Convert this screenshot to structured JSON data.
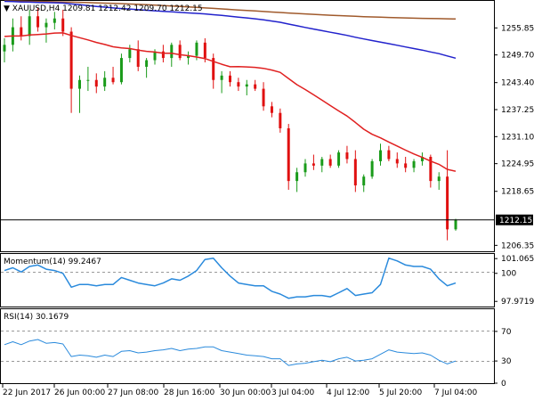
{
  "header": {
    "symbol_label": "XAUUSD,H4",
    "ohlc_text": "1209.81 1212.42 1209.70 1212.15"
  },
  "panels": {
    "price": {
      "ticks": [
        "1255.85",
        "1249.70",
        "1243.40",
        "1237.25",
        "1231.10",
        "1224.95",
        "1218.65",
        "1206.35"
      ],
      "current_price_label": "1212.15"
    },
    "momentum": {
      "label": "Momentum(14) 99.2467",
      "ticks": [
        "101.0655",
        "100",
        "97.9719"
      ]
    },
    "rsi": {
      "label": "RSI(14) 30.1679",
      "ticks": [
        "70",
        "30",
        "0"
      ]
    }
  },
  "x_axis": {
    "labels": [
      "22 Jun 2017",
      "26 Jun 00:00",
      "27 Jun 08:00",
      "28 Jun 16:00",
      "30 Jun 00:00",
      "3 Jul 04:00",
      "4 Jul 12:00",
      "5 Jul 20:00",
      "7 Jul 04:00"
    ]
  },
  "colors": {
    "bull": "#1a9b1a",
    "bear": "#e01010",
    "sma_fast": "#e02020",
    "sma_mid": "#2222cc",
    "sma_slow": "#a05a2c",
    "indicator": "#2a8adc",
    "grid": "#999999",
    "price_line": "#000000"
  },
  "chart_data": [
    {
      "type": "candlestick",
      "title": "XAUUSD,H4",
      "ylim": [
        1205,
        1262
      ],
      "current_price": 1212.15,
      "candles": [
        [
          1250.5,
          1253.5,
          1248,
          1252
        ],
        [
          1252,
          1258,
          1250.5,
          1256
        ],
        [
          1256,
          1258.5,
          1253,
          1254
        ],
        [
          1254,
          1260,
          1252,
          1258.5
        ],
        [
          1258.5,
          1260.5,
          1255,
          1256
        ],
        [
          1256,
          1258,
          1252.5,
          1257
        ],
        [
          1257,
          1259.5,
          1255.5,
          1258
        ],
        [
          1258,
          1260,
          1254,
          1255
        ],
        [
          1255,
          1256,
          1236.5,
          1242
        ],
        [
          1242,
          1245,
          1236.5,
          1244
        ],
        [
          1244,
          1247,
          1241.5,
          1244
        ],
        [
          1244,
          1245.5,
          1241,
          1242.5
        ],
        [
          1242.5,
          1246,
          1241.5,
          1244.5
        ],
        [
          1244.5,
          1247,
          1243,
          1243.5
        ],
        [
          1243.5,
          1250,
          1243,
          1249
        ],
        [
          1249,
          1252,
          1248,
          1251
        ],
        [
          1251,
          1253,
          1246,
          1247
        ],
        [
          1247,
          1249,
          1244.5,
          1248.5
        ],
        [
          1248.5,
          1251,
          1247.5,
          1250.5
        ],
        [
          1250.5,
          1252,
          1248,
          1249
        ],
        [
          1249,
          1252.5,
          1247,
          1252
        ],
        [
          1252,
          1253,
          1248.5,
          1249
        ],
        [
          1249,
          1250.5,
          1247.5,
          1249.5
        ],
        [
          1249.5,
          1253,
          1248.5,
          1252.5
        ],
        [
          1252.5,
          1253.5,
          1248,
          1249
        ],
        [
          1249,
          1250,
          1242,
          1244
        ],
        [
          1244,
          1246,
          1241,
          1245
        ],
        [
          1245,
          1246,
          1242.5,
          1243.5
        ],
        [
          1243.5,
          1244.5,
          1241.5,
          1242.5
        ],
        [
          1242.5,
          1244,
          1240.5,
          1243
        ],
        [
          1243,
          1244,
          1241.5,
          1242
        ],
        [
          1242,
          1243.5,
          1237,
          1238
        ],
        [
          1238,
          1239,
          1235.5,
          1236.5
        ],
        [
          1236.5,
          1237.5,
          1232,
          1233
        ],
        [
          1233,
          1234,
          1219,
          1221
        ],
        [
          1221,
          1224,
          1218.5,
          1223
        ],
        [
          1223,
          1226,
          1222,
          1225
        ],
        [
          1225,
          1227,
          1223.5,
          1224.5
        ],
        [
          1224.5,
          1226.5,
          1223,
          1226
        ],
        [
          1226,
          1227,
          1224,
          1224.5
        ],
        [
          1224.5,
          1228,
          1224,
          1227.5
        ],
        [
          1227.5,
          1229,
          1225,
          1226
        ],
        [
          1226,
          1228,
          1218.5,
          1220
        ],
        [
          1220,
          1222.5,
          1218.5,
          1222
        ],
        [
          1222,
          1226,
          1221.5,
          1225.5
        ],
        [
          1225.5,
          1229.5,
          1224.5,
          1228
        ],
        [
          1228,
          1229,
          1225.5,
          1226
        ],
        [
          1226,
          1227.5,
          1224,
          1225
        ],
        [
          1225,
          1226.5,
          1223,
          1224
        ],
        [
          1224,
          1226,
          1223,
          1225.5
        ],
        [
          1225.5,
          1227.5,
          1224.5,
          1226.5
        ],
        [
          1226.5,
          1227,
          1219.5,
          1221
        ],
        [
          1221,
          1223,
          1219,
          1222
        ],
        [
          1222,
          1228,
          1207.5,
          1210
        ],
        [
          1210,
          1212.4,
          1209.7,
          1212.15
        ]
      ]
    },
    {
      "type": "line",
      "title": "Momentum(14) 99.2467",
      "ylim": [
        97.6,
        101.4
      ],
      "values": [
        100.2,
        100.4,
        100.1,
        100.5,
        100.6,
        100.3,
        100.2,
        100.0,
        99.0,
        99.2,
        99.2,
        99.1,
        99.2,
        99.2,
        99.7,
        99.5,
        99.3,
        99.2,
        99.1,
        99.3,
        99.6,
        99.5,
        99.8,
        100.2,
        101.0,
        101.1,
        100.4,
        99.8,
        99.3,
        99.2,
        99.1,
        99.1,
        98.7,
        98.5,
        98.2,
        98.3,
        98.3,
        98.4,
        98.4,
        98.3,
        98.6,
        98.9,
        98.4,
        98.5,
        98.6,
        99.2,
        101.1,
        100.9,
        100.6,
        100.5,
        100.5,
        100.3,
        99.6,
        99.1,
        99.3
      ]
    },
    {
      "type": "line",
      "title": "RSI(14) 30.1679",
      "ylim": [
        0,
        100
      ],
      "values": [
        52,
        56,
        52,
        57,
        59,
        54,
        55,
        53,
        36,
        38,
        37,
        35,
        38,
        36,
        43,
        44,
        41,
        42,
        44,
        45,
        47,
        44,
        46,
        47,
        49,
        49,
        44,
        42,
        40,
        38,
        37,
        36,
        33,
        33,
        24,
        26,
        27,
        29,
        31,
        29,
        33,
        35,
        30,
        31,
        33,
        39,
        45,
        42,
        41,
        40,
        41,
        38,
        31,
        26,
        30
      ]
    }
  ]
}
